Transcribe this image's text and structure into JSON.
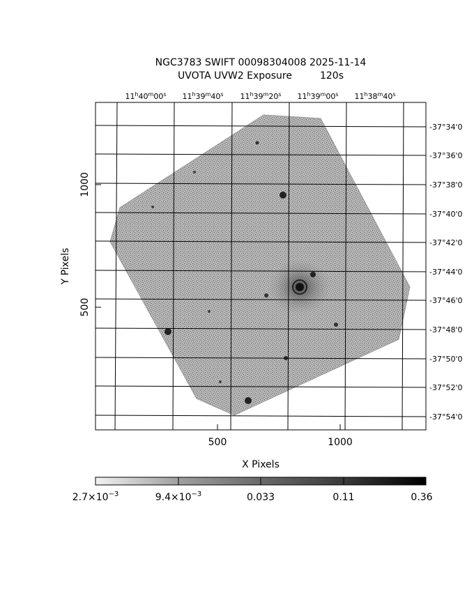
{
  "title": {
    "line1": "NGC3783 SWIFT 00098304008 2025-11-14",
    "line2": "UVOTA UVW2 Exposure         120s"
  },
  "axes": {
    "xlabel": "X Pixels",
    "ylabel": "Y Pixels",
    "x_ticks": [
      "500",
      "1000"
    ],
    "y_ticks": [
      "500",
      "1000"
    ],
    "ra_ticks": [
      {
        "h": "11",
        "m": "40",
        "s": "00"
      },
      {
        "h": "11",
        "m": "39",
        "s": "40"
      },
      {
        "h": "11",
        "m": "39",
        "s": "20"
      },
      {
        "h": "11",
        "m": "39",
        "s": "00"
      },
      {
        "h": "11",
        "m": "38",
        "s": "40"
      }
    ],
    "dec_ticks": [
      "-37°34'0",
      "-37°36'0",
      "-37°38'0",
      "-37°40'0",
      "-37°42'0",
      "-37°44'0",
      "-37°46'0",
      "-37°48'0",
      "-37°50'0",
      "-37°52'0",
      "-37°54'0"
    ]
  },
  "colorbar": {
    "labels": [
      {
        "mantissa": "2.7×10",
        "exp": "−3"
      },
      {
        "mantissa": "9.4×10",
        "exp": "−3"
      },
      {
        "mantissa": "0.033",
        "exp": ""
      },
      {
        "mantissa": "0.11",
        "exp": ""
      },
      {
        "mantissa": "0.36",
        "exp": ""
      }
    ]
  },
  "colors": {
    "field": "#aaaaaa",
    "frame": "#000000"
  }
}
